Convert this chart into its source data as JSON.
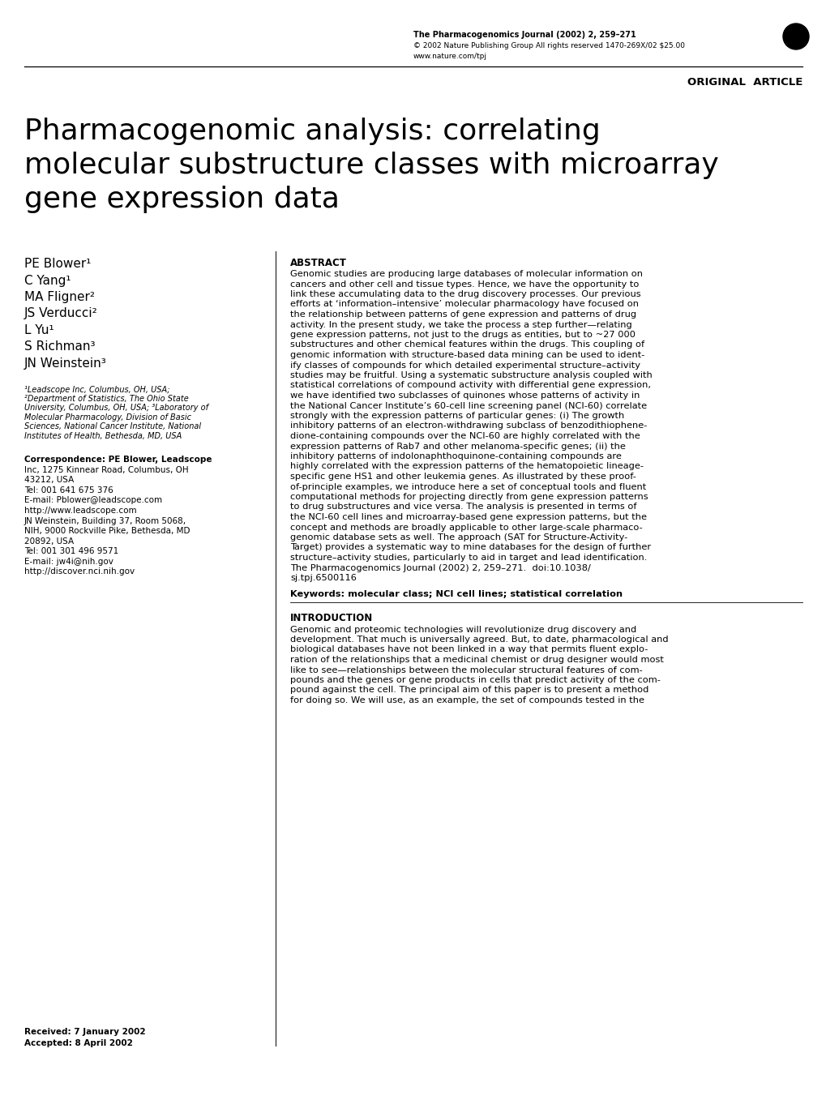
{
  "bg_color": "#ffffff",
  "header_journal": "The Pharmacogenomics Journal (2002) 2, 259–271",
  "header_copyright": "© 2002 Nature Publishing Group All rights reserved 1470-269X/02 $25.00",
  "header_url": "www.nature.com/tpj",
  "section_label": "ORIGINAL  ARTICLE",
  "article_title_line1": "Pharmacogenomic analysis: correlating",
  "article_title_line2": "molecular substructure classes with microarray",
  "article_title_line3": "gene expression data",
  "authors": [
    "PE Blower¹",
    "C Yang¹",
    "MA Fligner²",
    "JS Verducci²",
    "L Yu¹",
    "S Richman³",
    "JN Weinstein³"
  ],
  "affiliations_lines": [
    "¹Leadscope Inc, Columbus, OH, USA;",
    "²Department of Statistics, The Ohio State",
    "University, Columbus, OH, USA; ³Laboratory of",
    "Molecular Pharmacology, Division of Basic",
    "Sciences, National Cancer Institute, National",
    "Institutes of Health, Bethesda, MD, USA"
  ],
  "correspondence_lines": [
    "Correspondence: PE Blower, Leadscope",
    "Inc, 1275 Kinnear Road, Columbus, OH",
    "43212, USA",
    "Tel: 001 641 675 376",
    "E-mail: Pblower@leadscope.com",
    "http://www.leadscope.com",
    "JN Weinstein, Building 37, Room 5068,",
    "NIH, 9000 Rockville Pike, Bethesda, MD",
    "20892, USA",
    "Tel: 001 301 496 9571",
    "E-mail: jw4i@nih.gov",
    "http://discover.nci.nih.gov"
  ],
  "received": "Received: 7 January 2002",
  "accepted": "Accepted: 8 April 2002",
  "abstract_title": "ABSTRACT",
  "abstract_lines": [
    "Genomic studies are producing large databases of molecular information on",
    "cancers and other cell and tissue types. Hence, we have the opportunity to",
    "link these accumulating data to the drug discovery processes. Our previous",
    "efforts at ‘information–intensive’ molecular pharmacology have focused on",
    "the relationship between patterns of gene expression and patterns of drug",
    "activity. In the present study, we take the process a step further—relating",
    "gene expression patterns, not just to the drugs as entities, but to ~27 000",
    "substructures and other chemical features within the drugs. This coupling of",
    "genomic information with structure-based data mining can be used to ident-",
    "ify classes of compounds for which detailed experimental structure–activity",
    "studies may be fruitful. Using a systematic substructure analysis coupled with",
    "statistical correlations of compound activity with differential gene expression,",
    "we have identified two subclasses of quinones whose patterns of activity in",
    "the National Cancer Institute’s 60-cell line screening panel (NCI-60) correlate",
    "strongly with the expression patterns of particular genes: (i) The growth",
    "inhibitory patterns of an electron-withdrawing subclass of benzodithiophene-",
    "dione-containing compounds over the NCI-60 are highly correlated with the",
    "expression patterns of Rab7 and other melanoma-specific genes; (ii) the",
    "inhibitory patterns of indolonaphthoquinone-containing compounds are",
    "highly correlated with the expression patterns of the hematopoietic lineage-",
    "specific gene HS1 and other leukemia genes. As illustrated by these proof-",
    "of-principle examples, we introduce here a set of conceptual tools and fluent",
    "computational methods for projecting directly from gene expression patterns",
    "to drug substructures and vice versa. The analysis is presented in terms of",
    "the NCI-60 cell lines and microarray-based gene expression patterns, but the",
    "concept and methods are broadly applicable to other large-scale pharmaco-",
    "genomic database sets as well. The approach (SAT for Structure-Activity-",
    "Target) provides a systematic way to mine databases for the design of further",
    "structure–activity studies, particularly to aid in target and lead identification.",
    "The Pharmacogenomics Journal (2002) 2, 259–271.  doi:10.1038/",
    "sj.tpj.6500116"
  ],
  "abstract_italic_words": [
    "benzodithiophene-",
    "dione",
    "Rab7",
    "indolonaphthoquinone",
    "vice versa",
    "HS1",
    "The Pharmacogenomics Journal"
  ],
  "keywords_line": "Keywords: molecular class; NCI cell lines; statistical correlation",
  "intro_title": "INTRODUCTION",
  "intro_lines": [
    "Genomic and proteomic technologies will revolutionize drug discovery and",
    "development. That much is universally agreed. But, to date, pharmacological and",
    "biological databases have not been linked in a way that permits fluent explo-",
    "ration of the relationships that a medicinal chemist or drug designer would most",
    "like to see—relationships between the molecular structural features of com-",
    "pounds and the genes or gene products in cells that predict activity of the com-",
    "pound against the cell. The principal aim of this paper is to present a method",
    "for doing so. We will use, as an example, the set of compounds tested in the"
  ]
}
